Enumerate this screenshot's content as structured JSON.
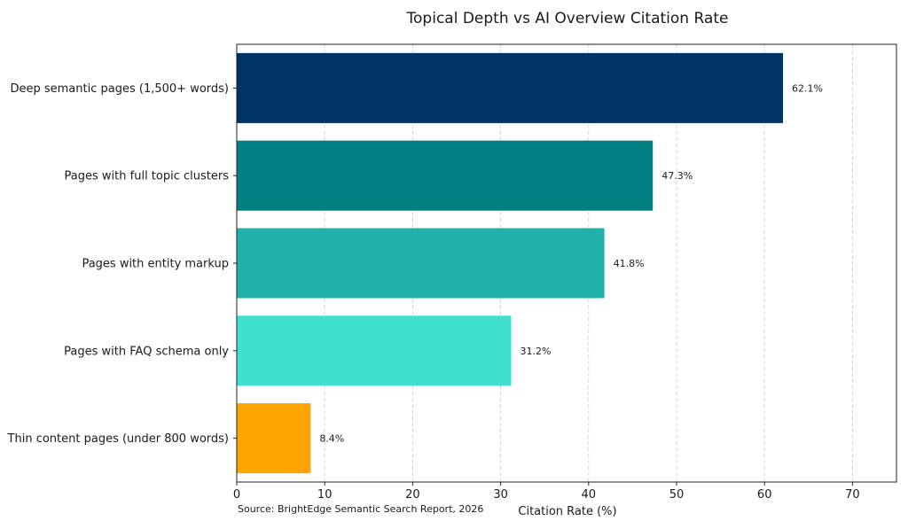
{
  "chart_data": {
    "type": "bar",
    "orientation": "horizontal",
    "title": "Topical Depth vs AI Overview Citation Rate",
    "xlabel": "Citation Rate (%)",
    "ylabel": "",
    "xlim": [
      0,
      75
    ],
    "xticks": [
      0,
      10,
      20,
      30,
      40,
      50,
      60,
      70
    ],
    "grid": "x",
    "categories": [
      "Deep semantic pages (1,500+ words)",
      "Pages with full topic clusters",
      "Pages with entity markup",
      "Pages with FAQ schema only",
      "Thin content pages (under 800 words)"
    ],
    "values": [
      62.1,
      47.3,
      41.8,
      31.2,
      8.4
    ],
    "data_labels": [
      "62.1%",
      "47.3%",
      "41.8%",
      "31.2%",
      "8.4%"
    ],
    "colors": [
      "#003366",
      "#008080",
      "#20b2aa",
      "#40e0d0",
      "#ffa500"
    ],
    "source": "Source: BrightEdge Semantic Search Report, 2026"
  }
}
